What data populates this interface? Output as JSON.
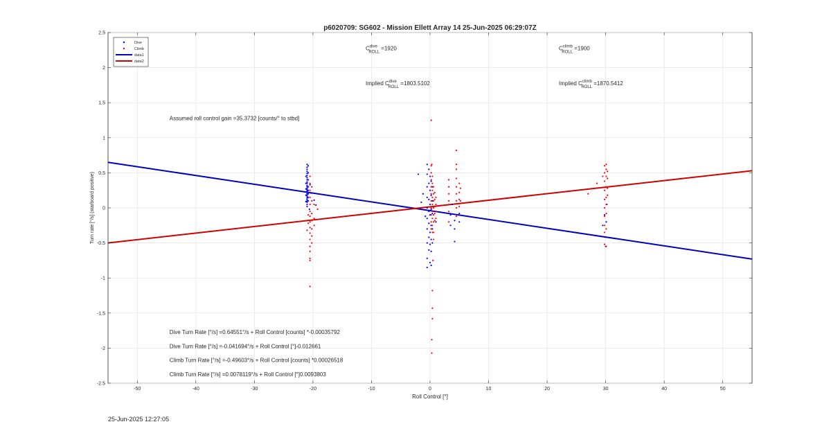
{
  "chart_data": {
    "type": "scatter",
    "title": "p6020709: SG602 - Mission Ellett Array 14 25-Jun-2025 06:29:07Z",
    "xlabel": "Roll Control [°]",
    "ylabel": "Turn rate [°/s] (starboard positive)",
    "xlim": [
      -55,
      55
    ],
    "ylim": [
      -2.5,
      2.5
    ],
    "x_ticks": [
      -50,
      -40,
      -30,
      -20,
      -10,
      0,
      10,
      20,
      30,
      40,
      50
    ],
    "x_tick_labels": [
      "-50",
      "-40",
      "-30",
      "-20",
      "-10",
      "0",
      "10",
      "20",
      "30",
      "40",
      "50"
    ],
    "y_ticks": [
      2.5,
      2,
      1.5,
      1,
      0.5,
      0,
      -0.5,
      -1,
      -1.5,
      -2,
      -2.5
    ],
    "y_tick_labels": [
      "2.5",
      "2",
      "1.5",
      "1",
      "0.5",
      "0",
      "-0.5",
      "-1",
      "-1.5",
      "-2",
      "-2.5"
    ],
    "grid": true,
    "legend_position": "top-left",
    "series": [
      {
        "name": "Dive",
        "kind": "points",
        "color": "#0000ff",
        "points": [
          [
            -21,
            0.62
          ],
          [
            -21,
            0.58
          ],
          [
            -21,
            0.55
          ],
          [
            -21,
            0.52
          ],
          [
            -21,
            0.49
          ],
          [
            -21,
            0.46
          ],
          [
            -21,
            0.43
          ],
          [
            -21,
            0.4
          ],
          [
            -21,
            0.37
          ],
          [
            -21,
            0.35
          ],
          [
            -21,
            0.32
          ],
          [
            -21,
            0.3
          ],
          [
            -21,
            0.28
          ],
          [
            -21,
            0.26
          ],
          [
            -21,
            0.24
          ],
          [
            -21,
            0.22
          ],
          [
            -21,
            0.2
          ],
          [
            -21,
            0.18
          ],
          [
            -21,
            0.16
          ],
          [
            -21,
            0.14
          ],
          [
            -21,
            0.12
          ],
          [
            -21,
            0.1
          ],
          [
            -21,
            0.08
          ],
          [
            -21,
            0.05
          ],
          [
            -21,
            0.02
          ],
          [
            -20.8,
            0.6
          ],
          [
            -20.8,
            0.5
          ],
          [
            -20.8,
            0.4
          ],
          [
            -20.8,
            0.3
          ],
          [
            -20.8,
            0.25
          ],
          [
            -20.8,
            0.2
          ],
          [
            -20.8,
            0.15
          ],
          [
            -20.8,
            0.1
          ],
          [
            -21.2,
            0.45
          ],
          [
            -21.2,
            0.35
          ],
          [
            -21.2,
            0.27
          ],
          [
            -21.2,
            0.18
          ],
          [
            -21.2,
            0.09
          ],
          [
            -20.5,
            0.33
          ],
          [
            -20.3,
            0.21
          ],
          [
            -19.8,
            0.11
          ],
          [
            -19.5,
            0.04
          ],
          [
            -20.6,
            -0.02
          ],
          [
            -0.5,
            0.62
          ],
          [
            -0.5,
            0.48
          ],
          [
            -0.5,
            0.3
          ],
          [
            -0.5,
            0.15
          ],
          [
            -0.5,
            0.0
          ],
          [
            -0.5,
            -0.15
          ],
          [
            -0.5,
            -0.3
          ],
          [
            -0.5,
            -0.5
          ],
          [
            -0.5,
            -0.72
          ],
          [
            -0.5,
            -0.85
          ],
          [
            -0.2,
            0.55
          ],
          [
            -0.2,
            0.35
          ],
          [
            -0.2,
            0.12
          ],
          [
            -0.2,
            -0.05
          ],
          [
            -0.2,
            -0.22
          ],
          [
            -0.2,
            -0.42
          ],
          [
            -0.2,
            -0.6
          ],
          [
            0,
            0.45
          ],
          [
            0,
            0.25
          ],
          [
            0,
            0.05
          ],
          [
            0,
            -0.1
          ],
          [
            0,
            -0.35
          ],
          [
            0,
            -0.52
          ],
          [
            0,
            -0.78
          ],
          [
            0.2,
            0.38
          ],
          [
            0.2,
            0.18
          ],
          [
            0.2,
            -0.02
          ],
          [
            0.2,
            -0.25
          ],
          [
            0.2,
            -0.45
          ],
          [
            0.2,
            -0.62
          ],
          [
            0.2,
            -0.82
          ],
          [
            0.4,
            0.3
          ],
          [
            0.4,
            0.1
          ],
          [
            0.4,
            -0.08
          ],
          [
            0.4,
            -0.3
          ],
          [
            0.4,
            -0.5
          ],
          [
            -1.2,
            0.2
          ],
          [
            -1.5,
            0.08
          ],
          [
            -0.8,
            -0.12
          ],
          [
            -2,
            0.48
          ],
          [
            1,
            -0.2
          ],
          [
            3.5,
            -0.1
          ],
          [
            3.5,
            -0.25
          ],
          [
            3.8,
            0.05
          ],
          [
            4.2,
            -0.48
          ],
          [
            4.2,
            -0.3
          ],
          [
            4.2,
            -0.18
          ],
          [
            5,
            -0.2
          ],
          [
            5,
            -0.08
          ],
          [
            29.5,
            -0.25
          ],
          [
            29.8,
            -0.1
          ],
          [
            30,
            -0.55
          ],
          [
            30.1,
            -0.2
          ],
          [
            30.2,
            0.05
          ]
        ]
      },
      {
        "name": "Climb",
        "kind": "points",
        "color": "#ff0000",
        "points": [
          [
            -20.5,
            0.45
          ],
          [
            -20.5,
            0.35
          ],
          [
            -20.5,
            0.25
          ],
          [
            -20.5,
            0.15
          ],
          [
            -20.5,
            0.05
          ],
          [
            -20.5,
            -0.05
          ],
          [
            -20.5,
            -0.12
          ],
          [
            -20.5,
            -0.2
          ],
          [
            -20.5,
            -0.28
          ],
          [
            -20.5,
            -0.36
          ],
          [
            -20.5,
            -0.45
          ],
          [
            -20.5,
            -0.55
          ],
          [
            -20.5,
            -0.62
          ],
          [
            -20.5,
            -0.72
          ],
          [
            -20.5,
            -0.75
          ],
          [
            -20.5,
            -1.12
          ],
          [
            -20.2,
            0.3
          ],
          [
            -20.2,
            0.1
          ],
          [
            -20.2,
            -0.08
          ],
          [
            -20.2,
            -0.18
          ],
          [
            -20.2,
            -0.3
          ],
          [
            -20.2,
            -0.4
          ],
          [
            -20.2,
            -0.5
          ],
          [
            -19.8,
            0.05
          ],
          [
            -19.8,
            -0.15
          ],
          [
            -19.8,
            -0.25
          ],
          [
            -20.8,
            -0.1
          ],
          [
            -20.8,
            -0.22
          ],
          [
            -21,
            -0.32
          ],
          [
            -19.2,
            -0.02
          ],
          [
            0.2,
            1.25
          ],
          [
            0.2,
            0.6
          ],
          [
            0.2,
            0.5
          ],
          [
            0.2,
            0.4
          ],
          [
            0.2,
            0.3
          ],
          [
            0.2,
            0.2
          ],
          [
            0.2,
            0.1
          ],
          [
            0.2,
            0.0
          ],
          [
            0.2,
            -0.1
          ],
          [
            0.2,
            -0.2
          ],
          [
            0.2,
            -0.3
          ],
          [
            0.4,
            0.45
          ],
          [
            0.4,
            0.35
          ],
          [
            0.4,
            0.25
          ],
          [
            0.4,
            0.15
          ],
          [
            0.4,
            0.05
          ],
          [
            0.4,
            -0.05
          ],
          [
            0.4,
            -0.15
          ],
          [
            0.4,
            -0.25
          ],
          [
            0.4,
            -0.35
          ],
          [
            0.6,
            0.3
          ],
          [
            0.6,
            0.2
          ],
          [
            0.6,
            0.1
          ],
          [
            0.6,
            0.0
          ],
          [
            0.6,
            -0.1
          ],
          [
            0.6,
            -0.2
          ],
          [
            0.6,
            -0.35
          ],
          [
            0.6,
            -0.45
          ],
          [
            0.8,
            0.22
          ],
          [
            0.8,
            0.12
          ],
          [
            0.8,
            0.02
          ],
          [
            0.8,
            -0.08
          ],
          [
            0.8,
            -0.18
          ],
          [
            1,
            0.15
          ],
          [
            1,
            0.05
          ],
          [
            1,
            -0.05
          ],
          [
            1,
            -0.15
          ],
          [
            0.4,
            -1.18
          ],
          [
            0.4,
            -1.43
          ],
          [
            0.4,
            -1.58
          ],
          [
            0.3,
            -1.88
          ],
          [
            0.3,
            -2.07
          ],
          [
            0.5,
            -0.75
          ],
          [
            0.3,
            0.62
          ],
          [
            3.2,
            0.4
          ],
          [
            3.2,
            0.3
          ],
          [
            3.2,
            0.2
          ],
          [
            3.2,
            0.1
          ],
          [
            3.2,
            -0.05
          ],
          [
            3.2,
            -0.2
          ],
          [
            4.5,
            0.82
          ],
          [
            4.5,
            0.62
          ],
          [
            4.5,
            0.55
          ],
          [
            4.5,
            0.42
          ],
          [
            4.5,
            0.3
          ],
          [
            4.5,
            0.2
          ],
          [
            4.5,
            0.1
          ],
          [
            4.5,
            0.0
          ],
          [
            4.5,
            -0.12
          ],
          [
            5,
            0.35
          ],
          [
            5,
            0.22
          ],
          [
            5,
            0.12
          ],
          [
            5,
            0.02
          ],
          [
            5.2,
            0.28
          ],
          [
            5.2,
            0.1
          ],
          [
            27,
            0.2
          ],
          [
            28.5,
            0.35
          ],
          [
            29.5,
            0.45
          ],
          [
            29.8,
            0.6
          ],
          [
            29.8,
            0.5
          ],
          [
            29.8,
            0.38
          ],
          [
            29.8,
            0.25
          ],
          [
            29.8,
            0.12
          ],
          [
            29.8,
            0.0
          ],
          [
            29.8,
            -0.12
          ],
          [
            29.8,
            -0.25
          ],
          [
            29.8,
            -0.35
          ],
          [
            29.8,
            -0.52
          ],
          [
            30.1,
            0.62
          ],
          [
            30.1,
            0.55
          ],
          [
            30.1,
            0.45
          ],
          [
            30.1,
            0.3
          ],
          [
            30.1,
            0.15
          ],
          [
            30.1,
            0.05
          ],
          [
            30.1,
            -0.08
          ],
          [
            30.1,
            -0.3
          ],
          [
            30.1,
            -0.55
          ],
          [
            30.3,
            0.52
          ],
          [
            30.3,
            0.42
          ],
          [
            30.3,
            0.28
          ],
          [
            30.3,
            0.18
          ]
        ]
      },
      {
        "name": "data1",
        "kind": "line",
        "color": "#0000c0",
        "points": [
          [
            -55,
            0.65
          ],
          [
            55,
            -0.73
          ]
        ]
      },
      {
        "name": "data2",
        "kind": "line",
        "color": "#d00000",
        "points": [
          [
            -55,
            -0.5
          ],
          [
            55,
            0.53
          ]
        ]
      }
    ],
    "annotations": [
      {
        "id": "c_dive",
        "anchor": [
          -11,
          2.25
        ],
        "base": "C",
        "sup": "dive",
        "sub": "ROLL",
        "tail": " =1920"
      },
      {
        "id": "c_climb",
        "anchor": [
          22,
          2.25
        ],
        "base": "C",
        "sup": "climb",
        "sub": "ROLL",
        "tail": " =1900"
      },
      {
        "id": "impl_dive",
        "anchor": [
          -11,
          1.75
        ],
        "base": "Implied C",
        "sup": "dive",
        "sub": "ROLL",
        "tail": " =1803.5102"
      },
      {
        "id": "impl_climb",
        "anchor": [
          22,
          1.75
        ],
        "base": "Implied C",
        "sup": "climb",
        "sub": "ROLL",
        "tail": " =1870.5412"
      },
      {
        "id": "gain",
        "anchor": [
          -44.5,
          1.25
        ],
        "text": "Assumed roll control gain =35.3732 [counts/° to stbd]"
      },
      {
        "id": "eq1",
        "anchor": [
          -44.5,
          -1.8
        ],
        "text": "Dive Turn Rate [°/s] =0.64551°/s + Roll Control [counts] *-0.00035792"
      },
      {
        "id": "eq2",
        "anchor": [
          -44.5,
          -2.0
        ],
        "text": "Dive Turn Rate [°/s] =-0.041694°/s + Roll Control [°]-0.012661"
      },
      {
        "id": "eq3",
        "anchor": [
          -44.5,
          -2.2
        ],
        "text": "Climb Turn Rate [°/s] =-0.49603°/s + Roll Control [counts] *0.00026518"
      },
      {
        "id": "eq4",
        "anchor": [
          -44.5,
          -2.4
        ],
        "text": "Climb Turn Rate [°/s] =0.0078119°/s + Roll Control [°]0.0093803"
      }
    ]
  },
  "footer_timestamp": "25-Jun-2025 12:27:05"
}
